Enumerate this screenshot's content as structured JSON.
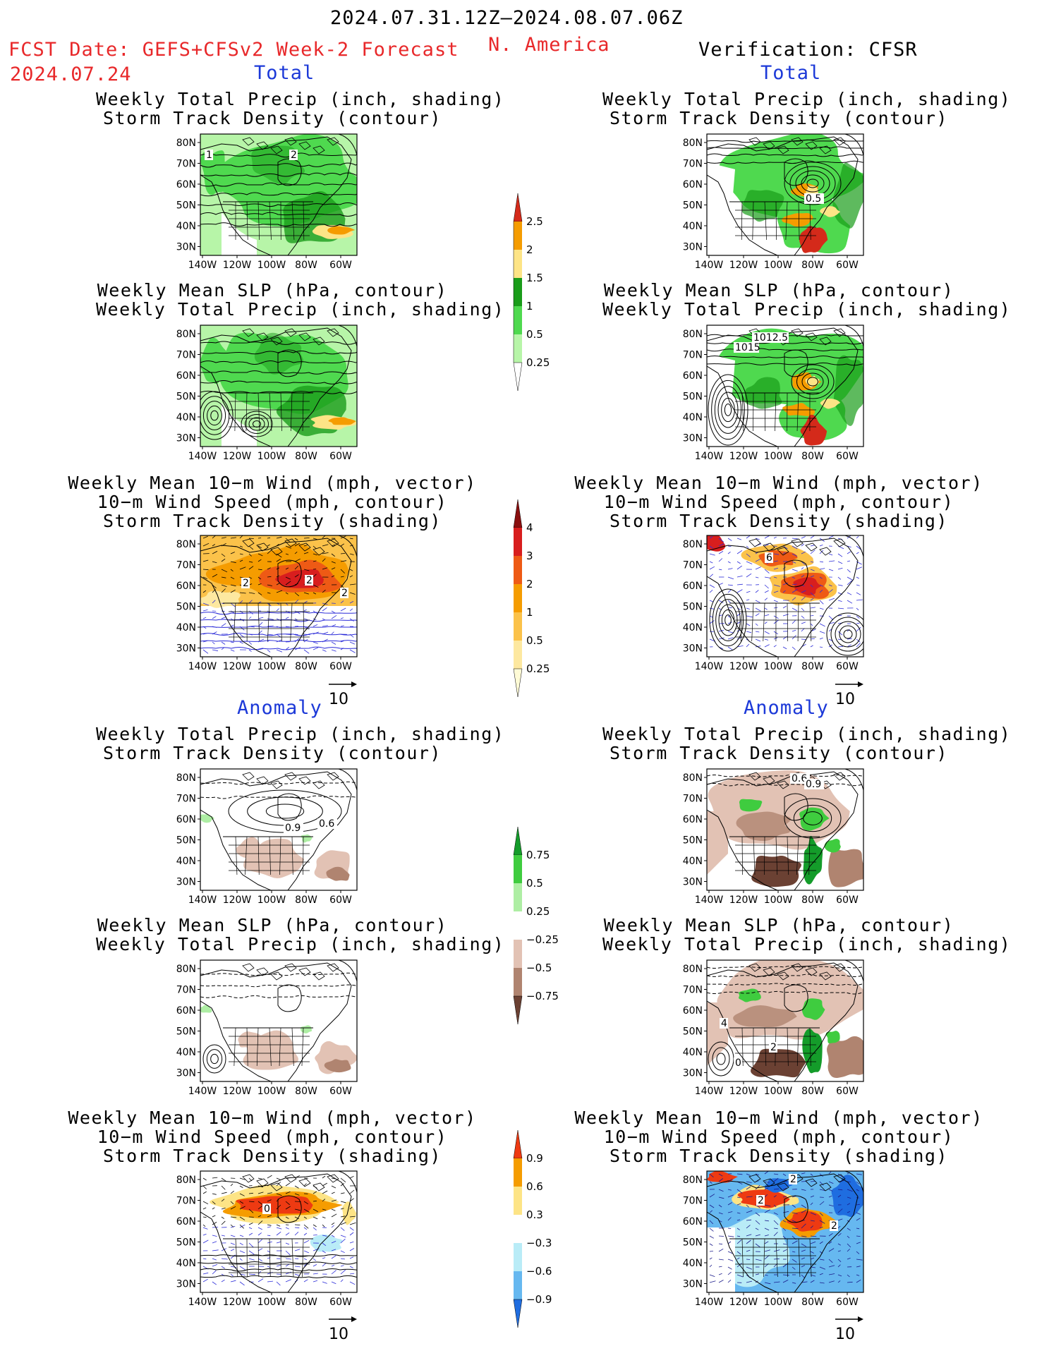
{
  "header": {
    "period": "2024.07.31.12Z–2024.08.07.06Z",
    "region": "N. America",
    "fcst_label": "FCST Date: GEFS+CFSv2 Week-2 Forecast",
    "fcst_date": "2024.07.24",
    "verification": "Verification: CFSR"
  },
  "sections": {
    "total": "Total",
    "anomaly": "Anomaly"
  },
  "panel_titles": {
    "precip_storm": [
      "Weekly Total Precip (inch, shading)",
      "Storm Track Density (contour)"
    ],
    "slp_precip": [
      "Weekly Mean SLP (hPa, contour)",
      "Weekly Total Precip (inch, shading)"
    ],
    "wind_storm": [
      "Weekly Mean 10−m Wind (mph, vector)",
      "10−m Wind Speed (mph, contour)",
      "Storm Track Density (shading)"
    ]
  },
  "axes": {
    "lat_labels": [
      "80N",
      "70N",
      "60N",
      "50N",
      "40N",
      "30N"
    ],
    "lon_labels": [
      "140W",
      "120W",
      "100W",
      "80W",
      "60W"
    ]
  },
  "vector_ref": "10",
  "colorbars": {
    "precip": {
      "labels": [
        "2.5",
        "2",
        "1.5",
        "1",
        "0.5",
        "0.25"
      ],
      "colors": [
        "#d42a1a",
        "#f59c00",
        "#fde486",
        "#1a9c1a",
        "#4fd94f",
        "#b7f5a8"
      ]
    },
    "storm": {
      "labels": [
        "4",
        "3",
        "2",
        "1",
        "0.5",
        "0.25"
      ],
      "colors": [
        "#8a0f0f",
        "#d81e1e",
        "#ee5a15",
        "#f59c00",
        "#fbc24a",
        "#fde8a0",
        "#fffbd6"
      ]
    },
    "precip_anom": {
      "labels": [
        "0.75",
        "0.5",
        "0.25",
        "−0.25",
        "−0.5",
        "−0.75"
      ],
      "colors": [
        "#149c2a",
        "#3fcc3f",
        "#aeeea4",
        "#ffffff",
        "#e2c2b4",
        "#b08470",
        "#6b4133"
      ]
    },
    "storm_anom": {
      "labels": [
        "0.9",
        "0.6",
        "0.3",
        "−0.3",
        "−0.6",
        "−0.9"
      ],
      "colors": [
        "#ee3a12",
        "#f59c00",
        "#fde486",
        "#ffffff",
        "#b9ecf7",
        "#66b8f0",
        "#1f6de0"
      ]
    }
  },
  "contour_labels": {
    "p1": [
      "2",
      "1"
    ],
    "p2": [
      "0.5"
    ],
    "p4": [
      "1012.5",
      "1015"
    ],
    "p5": [
      "2",
      "2",
      "2"
    ],
    "p6": [
      "6"
    ],
    "p7": [
      "0.9",
      "0.6"
    ],
    "p8": [
      "0.6",
      "0.9"
    ],
    "p10": [
      "4",
      "2",
      "0"
    ],
    "p11": [
      "0"
    ],
    "p12": [
      "2",
      "2",
      "2"
    ]
  },
  "colors": {
    "red_text": "#e8282a",
    "blue_text": "#1c39d8"
  }
}
